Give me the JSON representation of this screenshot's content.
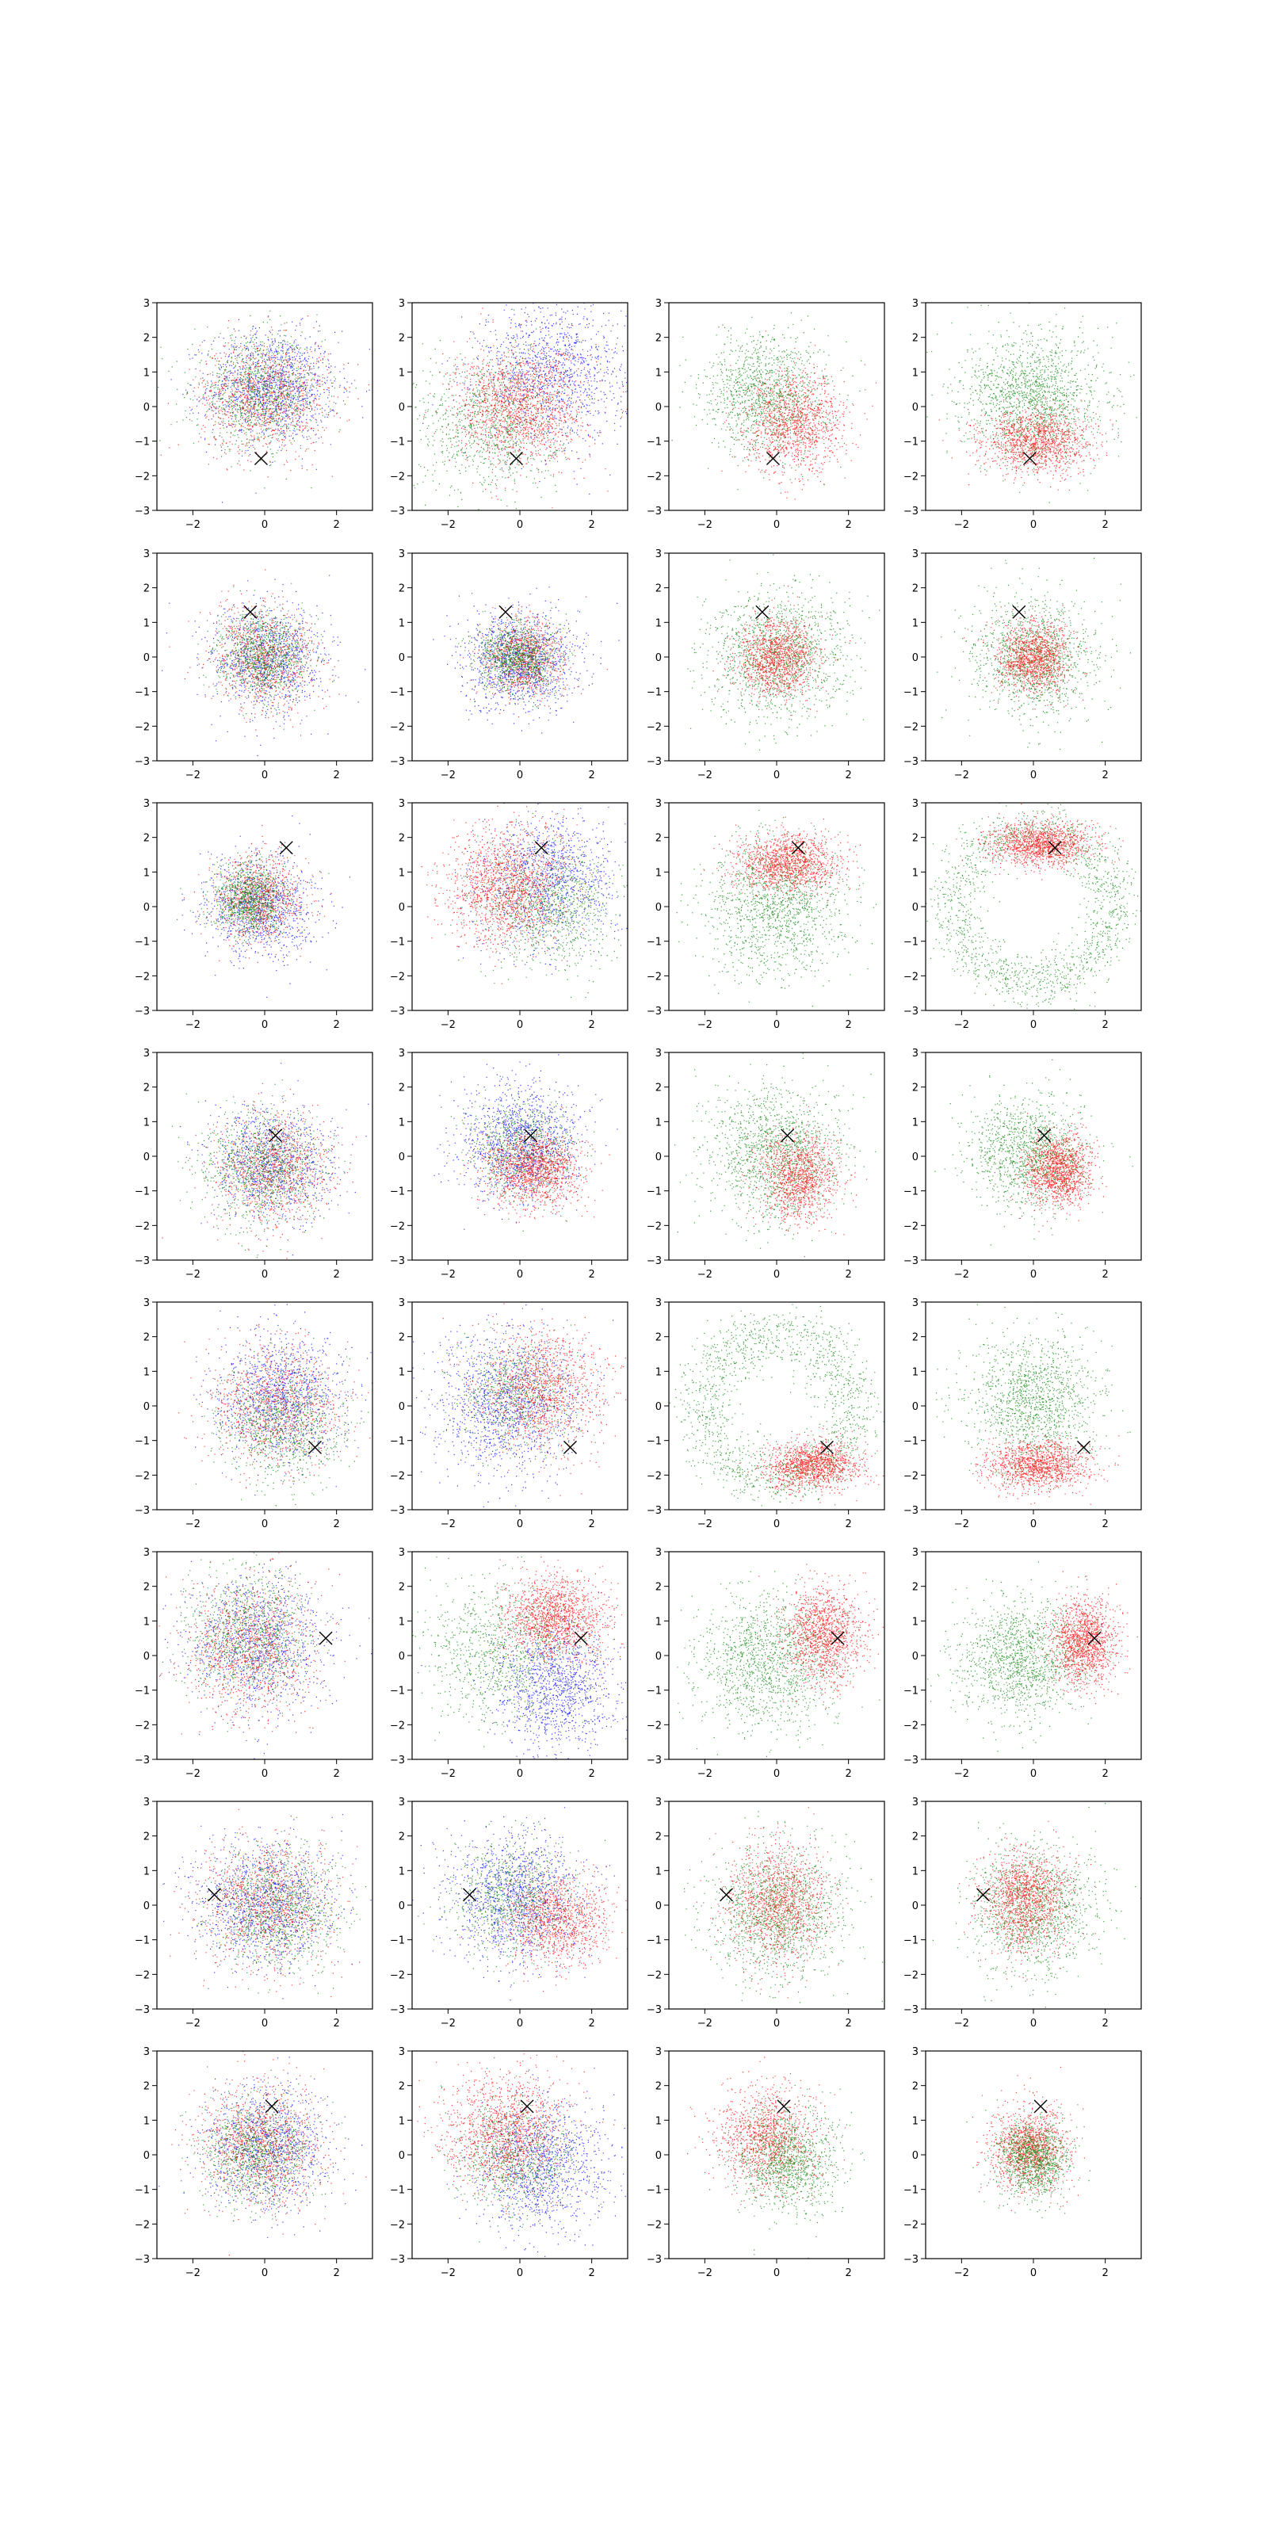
{
  "chart_data": {
    "type": "scatter",
    "grid": {
      "rows": 8,
      "cols": 4
    },
    "shared_axes": {
      "xlim": [
        -3,
        3
      ],
      "ylim": [
        -3,
        3
      ],
      "x_ticks": [
        -2,
        0,
        2
      ],
      "y_ticks": [
        -3,
        -2,
        -1,
        0,
        1,
        2,
        3
      ],
      "x_tick_labels": [
        "−2",
        "0",
        "2"
      ],
      "y_tick_labels": [
        "−3",
        "−2",
        "−1",
        "0",
        "1",
        "2",
        "3"
      ],
      "grid_lines": false
    },
    "colors": {
      "red": "#ff0000",
      "green": "#008000",
      "blue": "#0000ff",
      "marker": "#000000"
    },
    "marker": "x",
    "rows": [
      {
        "marker": [
          -0.1,
          -1.5
        ],
        "panels": [
          {
            "clouds": [
              {
                "color": "blue",
                "cx": 0.2,
                "cy": 0.6,
                "sx": 0.9,
                "sy": 0.8,
                "n": 1200
              },
              {
                "color": "red",
                "cx": 0.0,
                "cy": 0.3,
                "sx": 0.9,
                "sy": 0.8,
                "n": 1100
              },
              {
                "color": "green",
                "cx": -0.2,
                "cy": 0.4,
                "sx": 0.9,
                "sy": 0.8,
                "n": 900
              }
            ]
          },
          {
            "clouds": [
              {
                "color": "blue",
                "cx": 0.9,
                "cy": 1.0,
                "sx": 1.0,
                "sy": 1.0,
                "n": 1200
              },
              {
                "color": "green",
                "cx": -0.9,
                "cy": -0.5,
                "sx": 1.0,
                "sy": 1.0,
                "n": 900
              },
              {
                "color": "red",
                "cx": 0.0,
                "cy": 0.0,
                "sx": 0.9,
                "sy": 0.85,
                "n": 1500
              }
            ]
          },
          {
            "clouds": [
              {
                "color": "green",
                "cx": -0.3,
                "cy": 0.4,
                "sx": 0.85,
                "sy": 0.85,
                "n": 1200
              },
              {
                "color": "red",
                "cx": 0.5,
                "cy": -0.5,
                "sx": 0.7,
                "sy": 0.7,
                "n": 1200
              }
            ]
          },
          {
            "clouds": [
              {
                "color": "green",
                "cx": 0.0,
                "cy": 0.3,
                "sx": 0.95,
                "sy": 0.9,
                "n": 1500
              },
              {
                "color": "red",
                "cx": 0.1,
                "cy": -1.0,
                "sx": 0.75,
                "sy": 0.45,
                "n": 1300
              }
            ]
          }
        ]
      },
      {
        "marker": [
          -0.4,
          1.3
        ],
        "panels": [
          {
            "clouds": [
              {
                "color": "blue",
                "cx": 0.1,
                "cy": -0.1,
                "sx": 0.8,
                "sy": 0.8,
                "n": 1000
              },
              {
                "color": "red",
                "cx": 0.0,
                "cy": 0.0,
                "sx": 0.75,
                "sy": 0.75,
                "n": 900
              },
              {
                "color": "green",
                "cx": -0.1,
                "cy": 0.1,
                "sx": 0.6,
                "sy": 0.6,
                "n": 900
              }
            ]
          },
          {
            "clouds": [
              {
                "color": "blue",
                "cx": 0.0,
                "cy": -0.1,
                "sx": 0.8,
                "sy": 0.7,
                "n": 1200
              },
              {
                "color": "red",
                "cx": 0.1,
                "cy": 0.0,
                "sx": 0.55,
                "sy": 0.55,
                "n": 900
              },
              {
                "color": "green",
                "cx": -0.1,
                "cy": 0.0,
                "sx": 0.55,
                "sy": 0.5,
                "n": 900
              }
            ]
          },
          {
            "clouds": [
              {
                "color": "green",
                "cx": 0.0,
                "cy": 0.0,
                "sx": 0.95,
                "sy": 0.95,
                "n": 1300
              },
              {
                "color": "red",
                "cx": 0.0,
                "cy": 0.0,
                "sx": 0.55,
                "sy": 0.55,
                "n": 1200
              }
            ]
          },
          {
            "clouds": [
              {
                "color": "green",
                "cx": 0.0,
                "cy": 0.0,
                "sx": 0.85,
                "sy": 0.85,
                "n": 1200
              },
              {
                "color": "red",
                "cx": 0.0,
                "cy": 0.0,
                "sx": 0.5,
                "sy": 0.5,
                "n": 1200
              }
            ]
          }
        ]
      },
      {
        "marker": [
          0.6,
          1.7
        ],
        "panels": [
          {
            "clouds": [
              {
                "color": "blue",
                "cx": -0.1,
                "cy": 0.0,
                "sx": 0.75,
                "sy": 0.75,
                "n": 1000
              },
              {
                "color": "red",
                "cx": -0.2,
                "cy": 0.2,
                "sx": 0.6,
                "sy": 0.6,
                "n": 900
              },
              {
                "color": "green",
                "cx": -0.4,
                "cy": 0.2,
                "sx": 0.5,
                "sy": 0.5,
                "n": 900
              }
            ]
          },
          {
            "clouds": [
              {
                "color": "blue",
                "cx": 0.8,
                "cy": 0.8,
                "sx": 0.95,
                "sy": 0.95,
                "n": 1100
              },
              {
                "color": "green",
                "cx": 0.8,
                "cy": 0.0,
                "sx": 0.9,
                "sy": 0.85,
                "n": 900
              },
              {
                "color": "red",
                "cx": -0.4,
                "cy": 0.6,
                "sx": 0.85,
                "sy": 0.85,
                "n": 1500
              }
            ]
          },
          {
            "clouds": [
              {
                "color": "green",
                "cx": 0.0,
                "cy": 0.0,
                "sx": 0.95,
                "sy": 0.95,
                "n": 1300
              },
              {
                "color": "red",
                "cx": 0.3,
                "cy": 1.3,
                "sx": 0.7,
                "sy": 0.4,
                "n": 1300
              }
            ]
          },
          {
            "clouds": [
              {
                "ring": true,
                "color": "green",
                "cx": 0.0,
                "cy": 0.0,
                "r": 2.2,
                "sr": 0.4,
                "n": 1500
              },
              {
                "color": "red",
                "cx": 0.2,
                "cy": 1.8,
                "sx": 0.7,
                "sy": 0.3,
                "n": 1300
              }
            ]
          }
        ]
      },
      {
        "marker": [
          0.3,
          0.6
        ],
        "panels": [
          {
            "clouds": [
              {
                "color": "blue",
                "cx": 0.2,
                "cy": -0.2,
                "sx": 0.85,
                "sy": 0.8,
                "n": 1000
              },
              {
                "color": "red",
                "cx": 0.2,
                "cy": -0.4,
                "sx": 0.8,
                "sy": 0.8,
                "n": 1000
              },
              {
                "color": "green",
                "cx": -0.1,
                "cy": -0.3,
                "sx": 0.85,
                "sy": 0.85,
                "n": 900
              }
            ]
          },
          {
            "clouds": [
              {
                "color": "blue",
                "cx": 0.0,
                "cy": 0.4,
                "sx": 0.8,
                "sy": 0.8,
                "n": 1300
              },
              {
                "color": "green",
                "cx": 0.0,
                "cy": 0.2,
                "sx": 0.7,
                "sy": 0.7,
                "n": 600
              },
              {
                "color": "red",
                "cx": 0.4,
                "cy": -0.4,
                "sx": 0.65,
                "sy": 0.55,
                "n": 1300
              }
            ]
          },
          {
            "clouds": [
              {
                "color": "green",
                "cx": -0.1,
                "cy": 0.1,
                "sx": 0.95,
                "sy": 0.95,
                "n": 1300
              },
              {
                "color": "red",
                "cx": 0.6,
                "cy": -0.6,
                "sx": 0.55,
                "sy": 0.6,
                "n": 1200
              }
            ]
          },
          {
            "clouds": [
              {
                "color": "green",
                "cx": -0.2,
                "cy": 0.1,
                "sx": 0.8,
                "sy": 0.8,
                "n": 1200
              },
              {
                "color": "red",
                "cx": 0.7,
                "cy": -0.4,
                "sx": 0.45,
                "sy": 0.5,
                "n": 1300
              }
            ]
          }
        ]
      },
      {
        "marker": [
          1.4,
          -1.2
        ],
        "panels": [
          {
            "clouds": [
              {
                "color": "blue",
                "cx": 0.4,
                "cy": 0.3,
                "sx": 0.85,
                "sy": 0.9,
                "n": 1200
              },
              {
                "color": "red",
                "cx": 0.3,
                "cy": 0.0,
                "sx": 0.9,
                "sy": 0.9,
                "n": 1000
              },
              {
                "color": "green",
                "cx": 0.5,
                "cy": -0.6,
                "sx": 0.85,
                "sy": 0.85,
                "n": 800
              }
            ]
          },
          {
            "clouds": [
              {
                "color": "blue",
                "cx": -0.4,
                "cy": 0.1,
                "sx": 1.0,
                "sy": 1.0,
                "n": 1300
              },
              {
                "color": "green",
                "cx": -0.2,
                "cy": 0.4,
                "sx": 0.8,
                "sy": 0.8,
                "n": 600
              },
              {
                "color": "red",
                "cx": 0.6,
                "cy": 0.5,
                "sx": 0.9,
                "sy": 0.9,
                "n": 1200
              }
            ]
          },
          {
            "clouds": [
              {
                "ring": true,
                "color": "green",
                "cx": 0.0,
                "cy": 0.0,
                "r": 2.1,
                "sr": 0.45,
                "n": 1500
              },
              {
                "color": "red",
                "cx": 1.0,
                "cy": -1.7,
                "sx": 0.65,
                "sy": 0.35,
                "n": 1300
              }
            ]
          },
          {
            "clouds": [
              {
                "color": "green",
                "cx": 0.0,
                "cy": 0.2,
                "sx": 0.9,
                "sy": 0.9,
                "n": 1300
              },
              {
                "color": "red",
                "cx": 0.1,
                "cy": -1.7,
                "sx": 0.7,
                "sy": 0.35,
                "n": 1300
              }
            ]
          }
        ]
      },
      {
        "marker": [
          1.7,
          0.5
        ],
        "panels": [
          {
            "clouds": [
              {
                "color": "blue",
                "cx": -0.2,
                "cy": 0.4,
                "sx": 0.95,
                "sy": 1.0,
                "n": 1100
              },
              {
                "color": "green",
                "cx": -0.5,
                "cy": 0.6,
                "sx": 0.85,
                "sy": 0.9,
                "n": 900
              },
              {
                "color": "red",
                "cx": -0.4,
                "cy": 0.2,
                "sx": 0.9,
                "sy": 0.95,
                "n": 1000
              }
            ]
          },
          {
            "clouds": [
              {
                "color": "green",
                "cx": -0.7,
                "cy": 0.1,
                "sx": 1.0,
                "sy": 1.0,
                "n": 900
              },
              {
                "color": "blue",
                "cx": 1.0,
                "cy": -0.9,
                "sx": 0.8,
                "sy": 0.9,
                "n": 1200
              },
              {
                "color": "red",
                "cx": 1.0,
                "cy": 1.1,
                "sx": 0.7,
                "sy": 0.6,
                "n": 1400
              }
            ]
          },
          {
            "clouds": [
              {
                "color": "green",
                "cx": -0.3,
                "cy": -0.2,
                "sx": 0.95,
                "sy": 0.95,
                "n": 1300
              },
              {
                "color": "red",
                "cx": 1.3,
                "cy": 0.6,
                "sx": 0.55,
                "sy": 0.7,
                "n": 1300
              }
            ]
          },
          {
            "clouds": [
              {
                "color": "green",
                "cx": -0.4,
                "cy": -0.1,
                "sx": 0.85,
                "sy": 0.85,
                "n": 1300
              },
              {
                "color": "red",
                "cx": 1.4,
                "cy": 0.4,
                "sx": 0.45,
                "sy": 0.6,
                "n": 1400
              }
            ]
          }
        ]
      },
      {
        "marker": [
          -1.4,
          0.3
        ],
        "panels": [
          {
            "clouds": [
              {
                "color": "blue",
                "cx": 0.0,
                "cy": 0.1,
                "sx": 0.95,
                "sy": 0.9,
                "n": 1200
              },
              {
                "color": "red",
                "cx": 0.0,
                "cy": 0.1,
                "sx": 0.95,
                "sy": 0.9,
                "n": 1000
              },
              {
                "color": "green",
                "cx": 0.4,
                "cy": -0.1,
                "sx": 0.85,
                "sy": 0.85,
                "n": 900
              }
            ]
          },
          {
            "clouds": [
              {
                "color": "blue",
                "cx": -0.1,
                "cy": 0.2,
                "sx": 0.95,
                "sy": 0.95,
                "n": 1300
              },
              {
                "color": "green",
                "cx": -0.3,
                "cy": 0.2,
                "sx": 0.8,
                "sy": 0.8,
                "n": 700
              },
              {
                "color": "red",
                "cx": 1.0,
                "cy": -0.4,
                "sx": 0.7,
                "sy": 0.65,
                "n": 1100
              }
            ]
          },
          {
            "clouds": [
              {
                "color": "green",
                "cx": 0.0,
                "cy": -0.2,
                "sx": 0.95,
                "sy": 0.95,
                "n": 1300
              },
              {
                "color": "red",
                "cx": 0.0,
                "cy": 0.1,
                "sx": 0.7,
                "sy": 0.85,
                "n": 1200
              }
            ]
          },
          {
            "clouds": [
              {
                "color": "green",
                "cx": 0.0,
                "cy": -0.1,
                "sx": 0.9,
                "sy": 0.9,
                "n": 1200
              },
              {
                "color": "red",
                "cx": -0.2,
                "cy": 0.2,
                "sx": 0.6,
                "sy": 0.7,
                "n": 1300
              }
            ]
          }
        ]
      },
      {
        "marker": [
          0.2,
          1.4
        ],
        "panels": [
          {
            "clouds": [
              {
                "color": "blue",
                "cx": 0.1,
                "cy": 0.2,
                "sx": 0.85,
                "sy": 0.85,
                "n": 1100
              },
              {
                "color": "red",
                "cx": -0.1,
                "cy": 0.3,
                "sx": 0.85,
                "sy": 0.85,
                "n": 1100
              },
              {
                "color": "green",
                "cx": -0.2,
                "cy": 0.1,
                "sx": 0.75,
                "sy": 0.75,
                "n": 900
              }
            ]
          },
          {
            "clouds": [
              {
                "color": "blue",
                "cx": 0.6,
                "cy": -0.3,
                "sx": 0.9,
                "sy": 0.95,
                "n": 1200
              },
              {
                "color": "green",
                "cx": -0.2,
                "cy": 0.0,
                "sx": 0.8,
                "sy": 0.8,
                "n": 700
              },
              {
                "color": "red",
                "cx": -0.4,
                "cy": 0.7,
                "sx": 0.85,
                "sy": 0.85,
                "n": 1300
              }
            ]
          },
          {
            "clouds": [
              {
                "color": "red",
                "cx": -0.3,
                "cy": 0.5,
                "sx": 0.7,
                "sy": 0.7,
                "n": 1200
              },
              {
                "color": "green",
                "cx": 0.3,
                "cy": -0.2,
                "sx": 0.7,
                "sy": 0.7,
                "n": 1100
              }
            ]
          },
          {
            "clouds": [
              {
                "color": "red",
                "cx": -0.1,
                "cy": 0.2,
                "sx": 0.55,
                "sy": 0.6,
                "n": 1200
              },
              {
                "color": "green",
                "cx": 0.0,
                "cy": -0.1,
                "sx": 0.5,
                "sy": 0.55,
                "n": 1100
              }
            ]
          }
        ]
      }
    ]
  }
}
